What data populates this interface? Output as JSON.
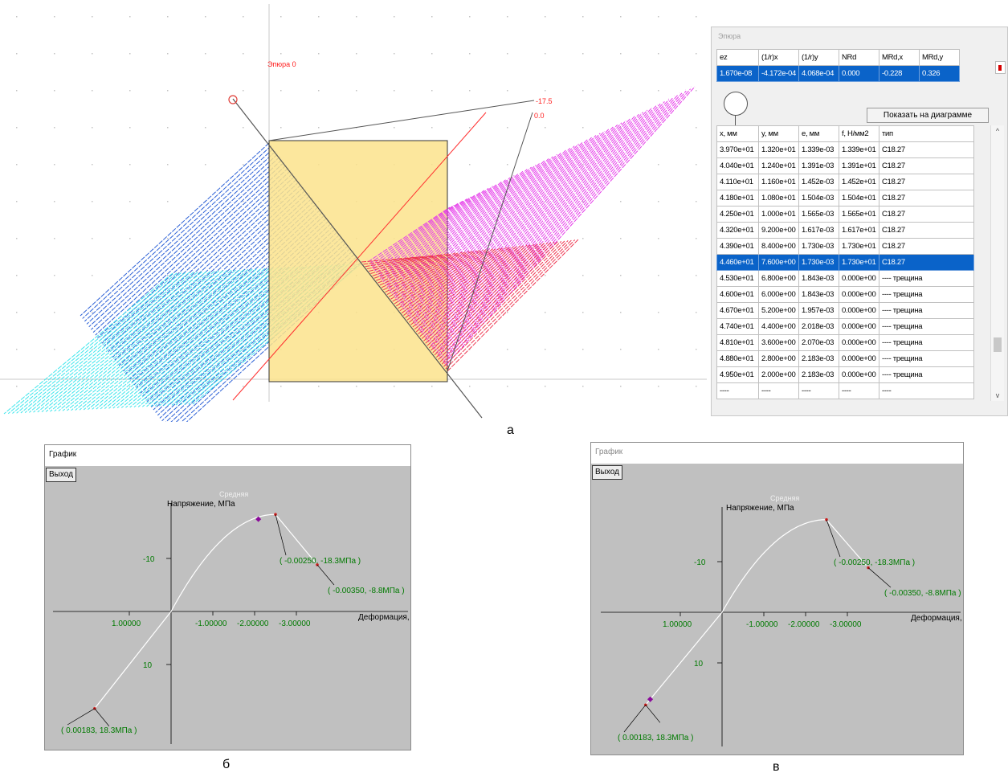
{
  "top_view": {
    "epure_label": "Эпюра 0",
    "neutral_value_a": "-17.5",
    "neutral_value_b": "0.0",
    "caption": "а"
  },
  "epure_panel": {
    "title": "Эпюра",
    "summary_headers": [
      "ez",
      "(1/r)x",
      "(1/r)y",
      "NRd",
      "MRd,x",
      "MRd,y"
    ],
    "summary_values": [
      "1.670e-08",
      "-4.172e-04",
      "4.068e-04",
      "0.000",
      "-0.228",
      "0.326"
    ],
    "show_button_label": "Показать на диаграмме",
    "points_headers": [
      "x, мм",
      "y, мм",
      "e, мм",
      "f, Н/мм2",
      "тип"
    ],
    "points_rows": [
      [
        "3.970e+01",
        "1.320e+01",
        "1.339e-03",
        "1.339e+01",
        "C18.27"
      ],
      [
        "4.040e+01",
        "1.240e+01",
        "1.391e-03",
        "1.391e+01",
        "C18.27"
      ],
      [
        "4.110e+01",
        "1.160e+01",
        "1.452e-03",
        "1.452e+01",
        "C18.27"
      ],
      [
        "4.180e+01",
        "1.080e+01",
        "1.504e-03",
        "1.504e+01",
        "C18.27"
      ],
      [
        "4.250e+01",
        "1.000e+01",
        "1.565e-03",
        "1.565e+01",
        "C18.27"
      ],
      [
        "4.320e+01",
        "9.200e+00",
        "1.617e-03",
        "1.617e+01",
        "C18.27"
      ],
      [
        "4.390e+01",
        "8.400e+00",
        "1.730e-03",
        "1.730e+01",
        "C18.27"
      ],
      [
        "4.460e+01",
        "7.600e+00",
        "1.730e-03",
        "1.730e+01",
        "C18.27"
      ],
      [
        "4.530e+01",
        "6.800e+00",
        "1.843e-03",
        "0.000e+00",
        "---- трещина"
      ],
      [
        "4.600e+01",
        "6.000e+00",
        "1.843e-03",
        "0.000e+00",
        "---- трещина"
      ],
      [
        "4.670e+01",
        "5.200e+00",
        "1.957e-03",
        "0.000e+00",
        "---- трещина"
      ],
      [
        "4.740e+01",
        "4.400e+00",
        "2.018e-03",
        "0.000e+00",
        "---- трещина"
      ],
      [
        "4.810e+01",
        "3.600e+00",
        "2.070e-03",
        "0.000e+00",
        "---- трещина"
      ],
      [
        "4.880e+01",
        "2.800e+00",
        "2.183e-03",
        "0.000e+00",
        "---- трещина"
      ],
      [
        "4.950e+01",
        "2.000e+00",
        "2.183e-03",
        "0.000e+00",
        "---- трещина"
      ],
      [
        "----",
        "----",
        "----",
        "----",
        "----"
      ]
    ],
    "selected_row_index": 7
  },
  "graph_b": {
    "window_title": "График",
    "exit_label": "Выход",
    "caption": "б"
  },
  "graph_c": {
    "window_title": "График",
    "exit_label": "Выход",
    "caption": "в"
  },
  "chart_data": [
    {
      "type": "line",
      "title": "",
      "series": [
        {
          "name": "Средняя",
          "x": [
            0.00183,
            0.0,
            -0.0005,
            -0.001,
            -0.0015,
            -0.002,
            -0.0025,
            -0.003,
            -0.0035
          ],
          "y": [
            18.3,
            0.0,
            -5.5,
            -10.2,
            -14.2,
            -17.0,
            -18.3,
            -14.7,
            -8.8
          ]
        }
      ],
      "xlabel": "Деформация,",
      "ylabel": "Напряжение, МПа",
      "x_tick_labels": [
        "1.00000",
        "-1.00000",
        "-2.00000",
        "-3.00000"
      ],
      "y_tick_labels": [
        "-10",
        "10"
      ],
      "annotations": [
        "( 0.00183, 18.3МПа )",
        "( -0.00250, -18.3МПа )",
        "( -0.00350, -8.8МПа )"
      ],
      "marked_point": {
        "x": -0.00209,
        "y": -17.3
      }
    },
    {
      "type": "line",
      "title": "",
      "series": [
        {
          "name": "Средняя",
          "x": [
            0.00183,
            0.0,
            -0.0005,
            -0.001,
            -0.0015,
            -0.002,
            -0.0025,
            -0.003,
            -0.0035
          ],
          "y": [
            18.3,
            0.0,
            -5.5,
            -10.2,
            -14.2,
            -17.0,
            -18.3,
            -14.7,
            -8.8
          ]
        }
      ],
      "xlabel": "Деформация,",
      "ylabel": "Напряжение, МПа",
      "x_tick_labels": [
        "1.00000",
        "-1.00000",
        "-2.00000",
        "-3.00000"
      ],
      "y_tick_labels": [
        "-10",
        "10"
      ],
      "annotations": [
        "( 0.00183, 18.3МПа )",
        "( -0.00250, -18.3МПа )",
        "( -0.00350, -8.8МПа )"
      ],
      "marked_point": {
        "x": 0.00172,
        "y": 17.3
      }
    }
  ],
  "colors": {
    "section_fill": "#fbe38c",
    "hatch_blue": "#2a5fd6",
    "hatch_cyan": "#3ee6ec",
    "hatch_magenta": "#e53be9",
    "hatch_red": "#ee3650",
    "accent_red": "#ff2020",
    "selection_blue": "#0a63c9",
    "label_green": "#007a00"
  }
}
